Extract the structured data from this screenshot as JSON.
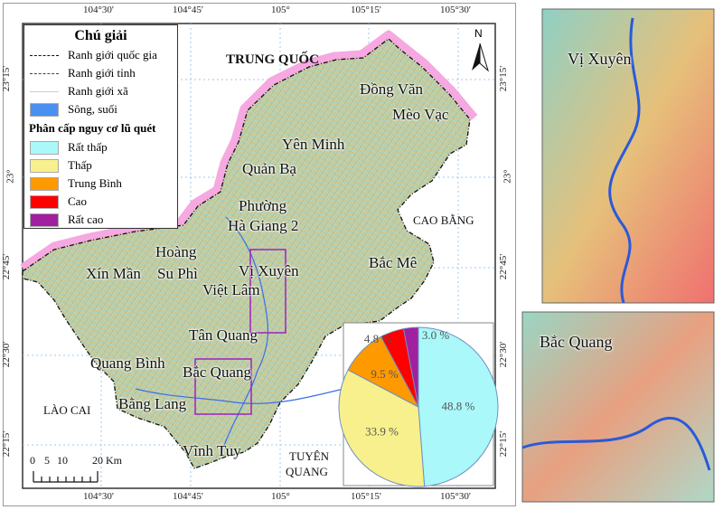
{
  "legend": {
    "title": "Chú giải",
    "lines": [
      {
        "label": "Ranh giới quốc gia",
        "style": "dash-dot-dot"
      },
      {
        "label": "Ranh giới tỉnh",
        "style": "dash-dot"
      },
      {
        "label": "Ranh giới xã",
        "style": "thin-gray"
      },
      {
        "label": "Sông, suối",
        "color": "#4a90f0"
      }
    ],
    "risk_title": "Phân cấp nguy cơ lũ quét",
    "risk_classes": [
      {
        "label": "Rất thấp",
        "color": "#aaf8fa"
      },
      {
        "label": "Thấp",
        "color": "#f8f08c"
      },
      {
        "label": "Trung Bình",
        "color": "#ff9900"
      },
      {
        "label": "Cao",
        "color": "#ff0000"
      },
      {
        "label": "Rất cao",
        "color": "#a020a0"
      }
    ]
  },
  "axes": {
    "lon_ticks": [
      "104°30'",
      "104°45'",
      "105°",
      "105°15'",
      "105°30'"
    ],
    "lat_ticks": [
      "23°15'",
      "23°",
      "22°45'",
      "22°30'",
      "22°15'"
    ]
  },
  "neighbors": [
    "TRUNG QUỐC",
    "CAO BẰNG",
    "LÀO CAI",
    "TUYÊN",
    "QUANG"
  ],
  "places": [
    "Đồng Văn",
    "Mèo Vạc",
    "Yên Minh",
    "Quản Bạ",
    "Phường",
    "Hà Giang 2",
    "Hoàng",
    "Xín Mần",
    "Su Phì",
    "Vị Xuyên",
    "Việt Lâm",
    "Bắc Mê",
    "Tân Quang",
    "Quang Bình",
    "Bắc Quang",
    "Bằng Lang",
    "Vĩnh Tuy"
  ],
  "north_arrow": "N",
  "scale_bar": {
    "labels": [
      "0",
      "5",
      "10",
      "20 Km"
    ]
  },
  "insets": [
    {
      "title": "Vị Xuyên"
    },
    {
      "title": "Bắc Quang"
    }
  ],
  "chart_data": {
    "type": "pie",
    "labels": [
      "Rất thấp",
      "Thấp",
      "Trung Bình",
      "Cao",
      "Rất cao"
    ],
    "values": [
      48.8,
      33.9,
      9.5,
      4.8,
      3.0
    ],
    "value_labels": [
      "48.8 %",
      "33.9 %",
      "9.5 %",
      "4.8 %",
      "3.0 %"
    ],
    "colors": [
      "#aaf8fa",
      "#f8f08c",
      "#ff9900",
      "#ff0000",
      "#a020a0"
    ],
    "start": "top",
    "direction": "clockwise"
  }
}
